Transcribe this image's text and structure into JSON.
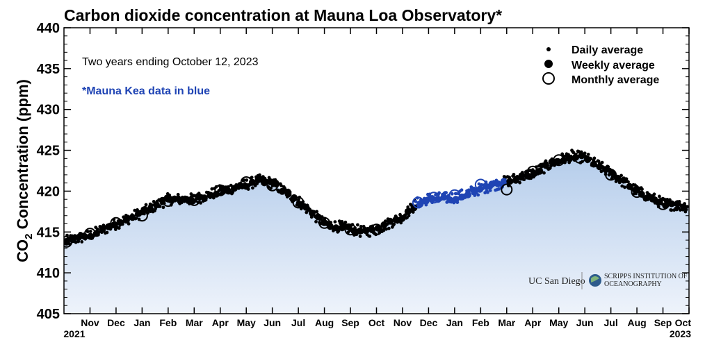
{
  "chart_data": {
    "type": "scatter",
    "title": "Carbon dioxide concentration at Mauna Loa Observatory*",
    "ylabel": "CO₂ Concentration (ppm)",
    "ylabel_main": "CO",
    "ylabel_sub": "2",
    "ylabel_rest": " Concentration (ppm)",
    "ylim": [
      405,
      440
    ],
    "yticks": [
      405,
      410,
      415,
      420,
      425,
      430,
      435,
      440
    ],
    "xlim": [
      0,
      24
    ],
    "month_ticks": [
      {
        "x": 1,
        "label": "Nov"
      },
      {
        "x": 2,
        "label": "Dec"
      },
      {
        "x": 3,
        "label": "Jan"
      },
      {
        "x": 4,
        "label": "Feb"
      },
      {
        "x": 5,
        "label": "Mar"
      },
      {
        "x": 6,
        "label": "Apr"
      },
      {
        "x": 7,
        "label": "May"
      },
      {
        "x": 8,
        "label": "Jun"
      },
      {
        "x": 9,
        "label": "Jul"
      },
      {
        "x": 10,
        "label": "Aug"
      },
      {
        "x": 11,
        "label": "Sep"
      },
      {
        "x": 12,
        "label": "Oct"
      },
      {
        "x": 13,
        "label": "Nov"
      },
      {
        "x": 14,
        "label": "Dec"
      },
      {
        "x": 15,
        "label": "Jan"
      },
      {
        "x": 16,
        "label": "Feb"
      },
      {
        "x": 17,
        "label": "Mar"
      },
      {
        "x": 18,
        "label": "Apr"
      },
      {
        "x": 19,
        "label": "May"
      },
      {
        "x": 20,
        "label": "Jun"
      },
      {
        "x": 21,
        "label": "Jul"
      },
      {
        "x": 22,
        "label": "Aug"
      },
      {
        "x": 23,
        "label": "Sep"
      },
      {
        "x": 24,
        "label": "Oct"
      }
    ],
    "year_labels": [
      {
        "x": 0.4,
        "label": "2021"
      },
      {
        "x": 24,
        "label": "2023"
      }
    ],
    "annotation": "Two years ending October 12, 2023",
    "mauna_kea_note": "*Mauna Kea data in blue",
    "mauna_kea_range": [
      13.5,
      16.9
    ],
    "legend": {
      "placement": "top-right",
      "items": [
        {
          "label": "Daily average",
          "marker": "small-dot"
        },
        {
          "label": "Weekly average",
          "marker": "large-dot"
        },
        {
          "label": "Monthly average",
          "marker": "open-circle"
        }
      ]
    },
    "trend": {
      "x": [
        0,
        1,
        2,
        3,
        4,
        5,
        6,
        7,
        7.5,
        8,
        9,
        10,
        11,
        11.5,
        12,
        13,
        13.6,
        14,
        15,
        16,
        17,
        18,
        19,
        19.5,
        20,
        21,
        22,
        23,
        24
      ],
      "y": [
        413.8,
        414.6,
        416.0,
        417.4,
        419.0,
        419.0,
        420.0,
        420.8,
        421.3,
        421.0,
        418.8,
        416.0,
        415.4,
        415.0,
        415.3,
        416.9,
        418.6,
        419.1,
        419.2,
        420.3,
        421.2,
        422.2,
        423.8,
        424.3,
        424.1,
        422.2,
        420.0,
        418.5,
        418.1
      ]
    },
    "monthly": {
      "x": [
        0.1,
        1,
        2,
        3,
        4,
        5,
        6,
        7,
        8,
        9,
        10,
        11,
        12,
        13.6,
        14.2,
        15,
        16,
        17,
        18,
        19,
        19.8,
        21,
        22,
        23
      ],
      "y": [
        413.8,
        414.8,
        416.1,
        417.0,
        418.8,
        418.9,
        420.1,
        421.1,
        420.7,
        418.6,
        416.1,
        415.3,
        415.3,
        418.6,
        419.2,
        419.5,
        420.8,
        420.2,
        422.4,
        423.8,
        424.1,
        422.0,
        419.9,
        418.4
      ]
    },
    "colors": {
      "mauna_loa": "#000000",
      "mauna_kea": "#1f44b4",
      "fill_top": "#b5cdeb",
      "fill_bottom": "#eef3fb"
    }
  },
  "logos": {
    "ucsd": "UC San Diego",
    "scripps_line1": "SCRIPPS INSTITUTION OF",
    "scripps_line2": "OCEANOGRAPHY"
  }
}
